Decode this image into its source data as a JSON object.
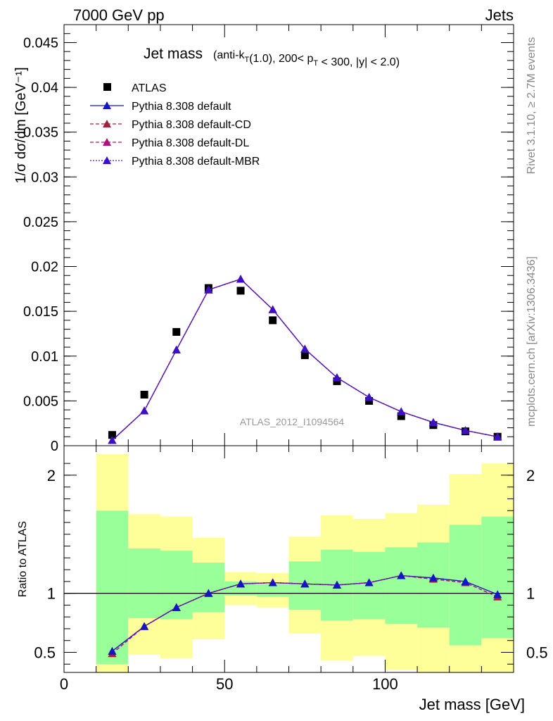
{
  "header": {
    "left": "7000 GeV pp",
    "right": "Jets"
  },
  "side": {
    "rivet": "Rivet 3.1.10, ≥ 2.7M events",
    "mcplots": "mcplots.cern.ch [arXiv:1306.3436]"
  },
  "chart_data": [
    {
      "type": "scatter",
      "panel": "main",
      "title": "Jet mass",
      "subtitle": "(anti-k_T(1.0), 200< p_T < 300, |y| < 2.0)",
      "ylabel": "1/σ dσ/dm [GeV⁻¹]",
      "watermark": "ATLAS_2012_I1094564",
      "xlim": [
        0,
        140
      ],
      "ylim": [
        0,
        0.047
      ],
      "yticks": [
        {
          "v": 0,
          "label": "0"
        },
        {
          "v": 0.005,
          "label": "0.005"
        },
        {
          "v": 0.01,
          "label": "0.01"
        },
        {
          "v": 0.015,
          "label": "0.015"
        },
        {
          "v": 0.02,
          "label": "0.02"
        },
        {
          "v": 0.025,
          "label": "0.025"
        },
        {
          "v": 0.03,
          "label": "0.03"
        },
        {
          "v": 0.035,
          "label": "0.035"
        },
        {
          "v": 0.04,
          "label": "0.04"
        },
        {
          "v": 0.045,
          "label": "0.045"
        }
      ],
      "legend_position": "top-left",
      "x": [
        15,
        25,
        35,
        45,
        55,
        65,
        75,
        85,
        95,
        105,
        115,
        125,
        135
      ],
      "series": [
        {
          "name": "ATLAS",
          "marker": "square",
          "color": "#000000",
          "values": [
            0.0012,
            0.0057,
            0.0127,
            0.0176,
            0.0173,
            0.014,
            0.0101,
            0.0072,
            0.005,
            0.0033,
            0.0023,
            0.0016,
            0.001
          ]
        },
        {
          "name": "Pythia 8.308 default",
          "marker": "triangle",
          "color": "#1515c8",
          "line": "solid",
          "values": [
            0.0006,
            0.0039,
            0.0107,
            0.0174,
            0.0186,
            0.0152,
            0.0108,
            0.0076,
            0.0054,
            0.0038,
            0.0026,
            0.0017,
            0.001
          ]
        },
        {
          "name": "Pythia 8.308 default-CD",
          "marker": "triangle",
          "color": "#a0203c",
          "line": "dashed",
          "values": [
            0.0006,
            0.0039,
            0.0107,
            0.0174,
            0.0186,
            0.0152,
            0.0108,
            0.0076,
            0.0054,
            0.0038,
            0.0026,
            0.0017,
            0.001
          ]
        },
        {
          "name": "Pythia 8.308 default-DL",
          "marker": "triangle",
          "color": "#b0107a",
          "line": "dashed",
          "values": [
            0.0006,
            0.0039,
            0.0107,
            0.0174,
            0.0186,
            0.0152,
            0.0108,
            0.0076,
            0.0054,
            0.0038,
            0.0026,
            0.0017,
            0.001
          ]
        },
        {
          "name": "Pythia 8.308 default-MBR",
          "marker": "triangle",
          "color": "#3a10c8",
          "line": "dotted",
          "values": [
            0.0006,
            0.0039,
            0.0107,
            0.0174,
            0.0186,
            0.0152,
            0.0108,
            0.0076,
            0.0054,
            0.0038,
            0.0026,
            0.0017,
            0.001
          ]
        }
      ]
    },
    {
      "type": "line",
      "panel": "ratio",
      "ylabel": "Ratio to ATLAS",
      "xlabel": "Jet mass [GeV]",
      "xlim": [
        0,
        140
      ],
      "ylim": [
        0.33,
        2.25
      ],
      "xticks": [
        {
          "v": 0,
          "label": "0"
        },
        {
          "v": 50,
          "label": "50"
        },
        {
          "v": 100,
          "label": "100"
        }
      ],
      "yticks": [
        {
          "v": 0.5,
          "label": "0.5"
        },
        {
          "v": 1,
          "label": "1"
        },
        {
          "v": 2,
          "label": "2"
        }
      ],
      "band_colors": {
        "stat": "#99ff99",
        "total": "#ffff99"
      },
      "bins": [
        {
          "lo": 10,
          "hi": 20,
          "inner": [
            0.4,
            1.7
          ],
          "outer": [
            0.32,
            2.18
          ]
        },
        {
          "lo": 20,
          "hi": 30,
          "inner": [
            0.79,
            1.38
          ],
          "outer": [
            0.48,
            1.67
          ]
        },
        {
          "lo": 30,
          "hi": 40,
          "inner": [
            0.78,
            1.36
          ],
          "outer": [
            0.45,
            1.65
          ]
        },
        {
          "lo": 40,
          "hi": 50,
          "inner": [
            0.84,
            1.26
          ],
          "outer": [
            0.61,
            1.47
          ]
        },
        {
          "lo": 50,
          "hi": 60,
          "inner": [
            0.98,
            1.1
          ],
          "outer": [
            0.9,
            1.18
          ]
        },
        {
          "lo": 60,
          "hi": 70,
          "inner": [
            0.97,
            1.08
          ],
          "outer": [
            0.88,
            1.17
          ]
        },
        {
          "lo": 70,
          "hi": 80,
          "inner": [
            0.86,
            1.27
          ],
          "outer": [
            0.66,
            1.48
          ]
        },
        {
          "lo": 80,
          "hi": 90,
          "inner": [
            0.77,
            1.37
          ],
          "outer": [
            0.43,
            1.66
          ]
        },
        {
          "lo": 90,
          "hi": 100,
          "inner": [
            0.78,
            1.35
          ],
          "outer": [
            0.47,
            1.63
          ]
        },
        {
          "lo": 100,
          "hi": 110,
          "inner": [
            0.74,
            1.39
          ],
          "outer": [
            0.35,
            1.68
          ]
        },
        {
          "lo": 110,
          "hi": 120,
          "inner": [
            0.71,
            1.43
          ],
          "outer": [
            0.32,
            1.75
          ]
        },
        {
          "lo": 120,
          "hi": 130,
          "inner": [
            0.56,
            1.58
          ],
          "outer": [
            0.32,
            2.01
          ]
        },
        {
          "lo": 130,
          "hi": 140,
          "inner": [
            0.62,
            1.65
          ],
          "outer": [
            0.32,
            2.1
          ]
        }
      ],
      "x": [
        15,
        25,
        35,
        45,
        55,
        65,
        75,
        85,
        95,
        105,
        115,
        125,
        135
      ],
      "series": [
        {
          "name": "Pythia 8.308 default",
          "color": "#1515c8",
          "line": "solid",
          "values": [
            0.51,
            0.72,
            0.88,
            1.0,
            1.08,
            1.09,
            1.08,
            1.07,
            1.09,
            1.15,
            1.13,
            1.1,
            0.99
          ]
        },
        {
          "name": "Pythia 8.308 default-CD",
          "color": "#a0203c",
          "line": "dashed",
          "values": [
            0.49,
            0.72,
            0.88,
            1.0,
            1.08,
            1.09,
            1.08,
            1.07,
            1.09,
            1.15,
            1.12,
            1.09,
            0.97
          ]
        },
        {
          "name": "Pythia 8.308 default-DL",
          "color": "#b0107a",
          "line": "dashed",
          "values": [
            0.49,
            0.72,
            0.88,
            1.0,
            1.08,
            1.09,
            1.08,
            1.07,
            1.09,
            1.15,
            1.12,
            1.09,
            0.97
          ]
        },
        {
          "name": "Pythia 8.308 default-MBR",
          "color": "#3a10c8",
          "line": "dotted",
          "values": [
            0.51,
            0.72,
            0.88,
            1.0,
            1.08,
            1.09,
            1.08,
            1.07,
            1.09,
            1.15,
            1.13,
            1.1,
            0.99
          ]
        }
      ]
    }
  ]
}
